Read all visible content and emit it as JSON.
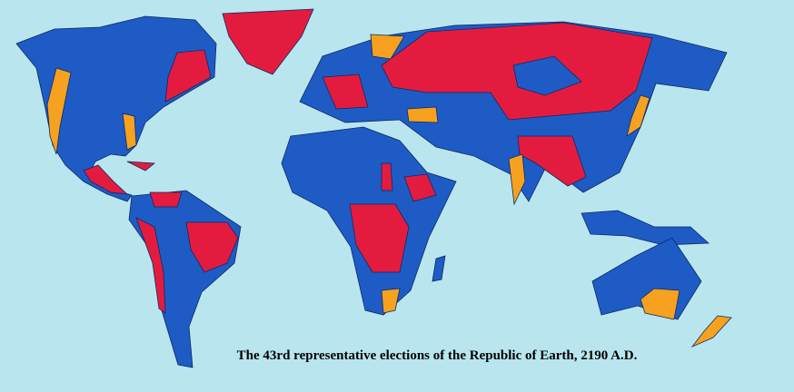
{
  "caption": "The 43rd representative elections of the Republic of Earth, 2190 A.D."
}
